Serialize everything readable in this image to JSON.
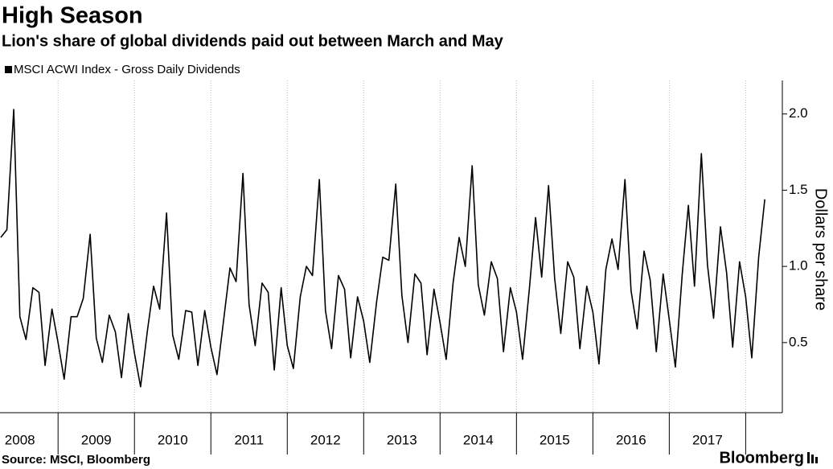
{
  "chart_data": {
    "type": "line",
    "title": "High Season",
    "subtitle": "Lion's share of global dividends paid out between March and May",
    "y_label": "Dollars per share",
    "source": "Source: MSCI, Bloomberg",
    "brand": "Bloomberg",
    "x": [
      2008.25,
      2008.33,
      2008.42,
      2008.5,
      2008.58,
      2008.67,
      2008.75,
      2008.83,
      2008.92,
      2009.0,
      2009.08,
      2009.17,
      2009.25,
      2009.33,
      2009.42,
      2009.5,
      2009.58,
      2009.67,
      2009.75,
      2009.83,
      2009.92,
      2010.0,
      2010.08,
      2010.17,
      2010.25,
      2010.33,
      2010.42,
      2010.5,
      2010.58,
      2010.67,
      2010.75,
      2010.83,
      2010.92,
      2011.0,
      2011.08,
      2011.17,
      2011.25,
      2011.33,
      2011.42,
      2011.5,
      2011.58,
      2011.67,
      2011.75,
      2011.83,
      2011.92,
      2012.0,
      2012.08,
      2012.17,
      2012.25,
      2012.33,
      2012.42,
      2012.5,
      2012.58,
      2012.67,
      2012.75,
      2012.83,
      2012.92,
      2013.0,
      2013.08,
      2013.17,
      2013.25,
      2013.33,
      2013.42,
      2013.5,
      2013.58,
      2013.67,
      2013.75,
      2013.83,
      2013.92,
      2014.0,
      2014.08,
      2014.17,
      2014.25,
      2014.33,
      2014.42,
      2014.5,
      2014.58,
      2014.67,
      2014.75,
      2014.83,
      2014.92,
      2015.0,
      2015.08,
      2015.17,
      2015.25,
      2015.33,
      2015.42,
      2015.5,
      2015.58,
      2015.67,
      2015.75,
      2015.83,
      2015.92,
      2016.0,
      2016.08,
      2016.17,
      2016.25,
      2016.33,
      2016.42,
      2016.5,
      2016.58,
      2016.67,
      2016.75,
      2016.83,
      2016.92,
      2017.0,
      2017.08,
      2017.17,
      2017.25,
      2017.33,
      2017.42,
      2017.5,
      2017.58,
      2017.67,
      2017.75,
      2017.83,
      2017.92,
      2018.0,
      2018.08,
      2018.17,
      2018.25
    ],
    "series": [
      {
        "name": "MSCI ACWI Index - Gross Daily Dividends",
        "color": "#000000",
        "values": [
          1.19,
          1.24,
          2.03,
          0.67,
          0.52,
          0.86,
          0.83,
          0.35,
          0.72,
          0.5,
          0.26,
          0.67,
          0.67,
          0.79,
          1.21,
          0.53,
          0.37,
          0.68,
          0.57,
          0.27,
          0.69,
          0.43,
          0.21,
          0.58,
          0.87,
          0.72,
          1.35,
          0.55,
          0.39,
          0.71,
          0.7,
          0.35,
          0.71,
          0.47,
          0.29,
          0.66,
          0.99,
          0.9,
          1.61,
          0.75,
          0.48,
          0.89,
          0.83,
          0.32,
          0.86,
          0.48,
          0.33,
          0.8,
          1.0,
          0.94,
          1.57,
          0.71,
          0.46,
          0.94,
          0.85,
          0.4,
          0.8,
          0.64,
          0.37,
          0.77,
          1.06,
          1.04,
          1.54,
          0.81,
          0.5,
          0.95,
          0.89,
          0.42,
          0.85,
          0.63,
          0.39,
          0.89,
          1.19,
          1.0,
          1.66,
          0.88,
          0.68,
          1.03,
          0.92,
          0.44,
          0.86,
          0.7,
          0.39,
          0.86,
          1.32,
          0.93,
          1.53,
          0.92,
          0.56,
          1.03,
          0.93,
          0.46,
          0.87,
          0.7,
          0.36,
          0.98,
          1.18,
          0.98,
          1.57,
          0.84,
          0.59,
          1.1,
          0.91,
          0.44,
          0.95,
          0.65,
          0.34,
          0.95,
          1.4,
          0.87,
          1.74,
          1.01,
          0.66,
          1.26,
          0.96,
          0.47,
          1.03,
          0.8,
          0.4,
          1.06,
          1.44
        ]
      }
    ],
    "xlim": [
      2008.24,
      2018.48
    ],
    "xticks": [
      {
        "value": 2008.5,
        "label": "2008"
      },
      {
        "value": 2009.5,
        "label": "2009"
      },
      {
        "value": 2010.5,
        "label": "2010"
      },
      {
        "value": 2011.5,
        "label": "2011"
      },
      {
        "value": 2012.5,
        "label": "2012"
      },
      {
        "value": 2013.5,
        "label": "2013"
      },
      {
        "value": 2014.5,
        "label": "2014"
      },
      {
        "value": 2015.5,
        "label": "2015"
      },
      {
        "value": 2016.5,
        "label": "2016"
      },
      {
        "value": 2017.5,
        "label": "2017"
      }
    ],
    "ylim": [
      0.04,
      2.22
    ],
    "yticks": [
      0.5,
      {
        "value": 1,
        "label": "1.0"
      },
      1.5,
      {
        "value": 2,
        "label": "2.0"
      }
    ],
    "grid": true,
    "legend": "top-left"
  }
}
